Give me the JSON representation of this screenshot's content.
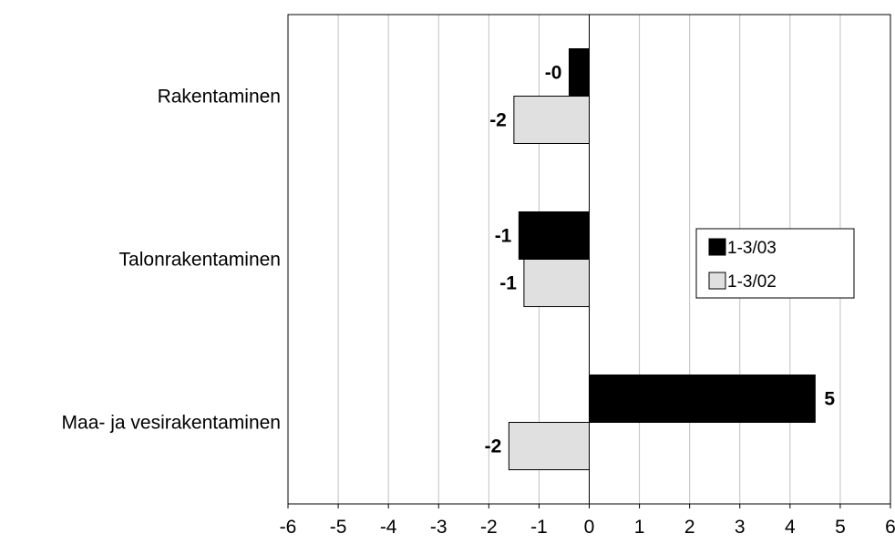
{
  "chart_data": {
    "type": "bar",
    "orientation": "horizontal",
    "categories": [
      "Rakentaminen",
      "Talonrakentaminen",
      "Maa- ja vesirakentaminen"
    ],
    "series": [
      {
        "name": "1-3/03",
        "color": "#000000",
        "values": [
          -0.4,
          -1.4,
          4.5
        ],
        "labels": [
          "-0",
          "-1",
          "5"
        ]
      },
      {
        "name": "1-3/02",
        "color": "#e0e0e0",
        "values": [
          -1.5,
          -1.3,
          -1.6
        ],
        "labels": [
          "-2",
          "-1",
          "-2"
        ]
      }
    ],
    "xlim": [
      -6,
      6
    ],
    "xticks": [
      -6,
      -5,
      -4,
      -3,
      -2,
      -1,
      0,
      1,
      2,
      3,
      4,
      5,
      6
    ],
    "tick_labels": [
      "-6",
      "-5",
      "-4",
      "-3",
      "-2",
      "-1",
      "0",
      "1",
      "2",
      "3",
      "4",
      "5",
      "6"
    ],
    "grid": true,
    "legend_position": "right"
  }
}
